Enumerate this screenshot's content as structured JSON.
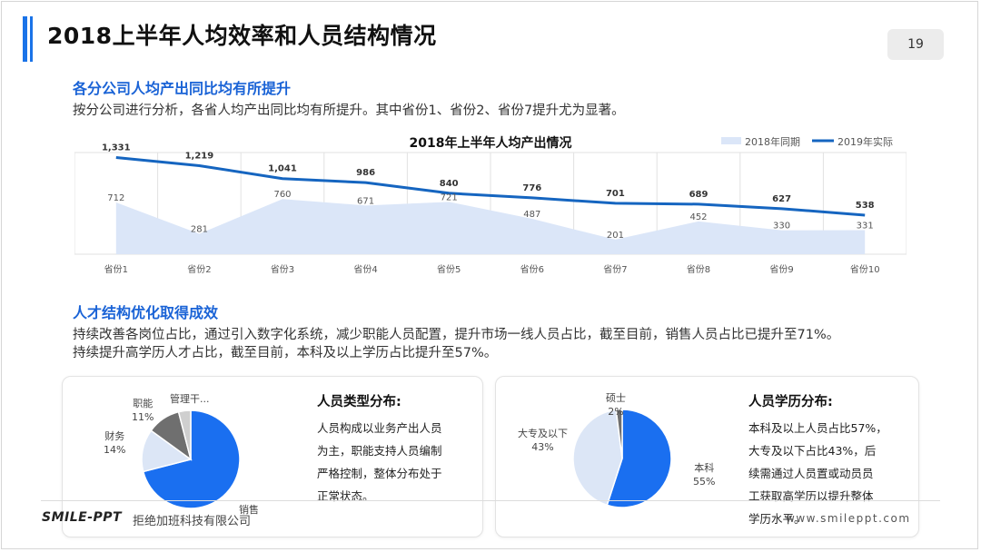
{
  "page": {
    "title": "2018上半年人均效率和人员结构情况",
    "page_number": "19",
    "accent_color": "#1a73e8"
  },
  "section1": {
    "heading": "各分公司人均产出同比均有所提升",
    "text": "按分公司进行分析，各省人均产出同比均有所提升。其中省份1、省份2、省份7提升尤为显著。"
  },
  "chart_data": {
    "type": "line",
    "title": "2018年上半年人均产出情况",
    "categories": [
      "省份1",
      "省份2",
      "省份3",
      "省份4",
      "省份5",
      "省份6",
      "省份7",
      "省份8",
      "省份9",
      "省份10"
    ],
    "series": [
      {
        "name": "2018年同期",
        "kind": "area",
        "color": "#dbe6f8",
        "values": [
          712,
          281,
          760,
          671,
          721,
          487,
          201,
          452,
          330,
          331
        ],
        "labels": [
          "712",
          "281",
          "760",
          "671",
          "721",
          "487",
          "201",
          "452",
          "330",
          "331"
        ]
      },
      {
        "name": "2019年实际",
        "kind": "line",
        "color": "#1565c0",
        "values": [
          1331,
          1219,
          1041,
          986,
          840,
          776,
          701,
          689,
          627,
          538
        ],
        "labels": [
          "1,331",
          "1,219",
          "1,041",
          "986",
          "840",
          "776",
          "701",
          "689",
          "627",
          "538"
        ]
      }
    ],
    "ylim": [
      0,
      1400
    ],
    "grid": "vertical",
    "legend": "top-right"
  },
  "section2": {
    "heading": "人才结构优化取得成效",
    "line1": "持续改善各岗位占比，通过引入数字化系统，减少职能人员配置，提升市场一线人员占比，截至目前，销售人员占比已提升至71%。",
    "line2": "持续提升高学历人才占比，截至目前，本科及以上学历占比提升至57%。"
  },
  "card1": {
    "heading": "人员类型分布:",
    "lines": [
      "人员构成以业务产出人员",
      "为主，职能支持人员编制",
      "严格控制，整体分布处于",
      "正常状态。"
    ],
    "pie": [
      {
        "name": "销售",
        "pct": 71,
        "color": "#1a6ff0"
      },
      {
        "name": "财务",
        "pct": 14,
        "color": "#dce6f6"
      },
      {
        "name": "职能",
        "pct": 11,
        "color": "#6f6f6f"
      },
      {
        "name": "管理干...",
        "pct": 4,
        "color": "#cfcfcf"
      }
    ],
    "labels": {
      "admin": "管理干...",
      "func_name": "职能",
      "func_pct": "11%",
      "fin_name": "财务",
      "fin_pct": "14%",
      "sales": "销售"
    }
  },
  "card2": {
    "heading": "人员学历分布:",
    "lines": [
      "本科及以上人员占比57%，",
      "大专及以下占比43%，后",
      "续需通过人员置或动员员",
      "工获取高学历以提升整体",
      "学历水平。"
    ],
    "pie": [
      {
        "name": "本科",
        "pct": 55,
        "color": "#1a6ff0"
      },
      {
        "name": "大专及以下",
        "pct": 43,
        "color": "#dce6f6"
      },
      {
        "name": "硕士",
        "pct": 2,
        "color": "#6f6f6f"
      }
    ],
    "labels": {
      "master_name": "硕士",
      "master_pct": "2%",
      "college_name": "大专及以下",
      "college_pct": "43%",
      "bachelor_name": "本科",
      "bachelor_pct": "55%"
    }
  },
  "footer": {
    "logo": "SMILE-PPT",
    "company": "拒绝加班科技有限公司",
    "url": "www.smileppt.com"
  }
}
